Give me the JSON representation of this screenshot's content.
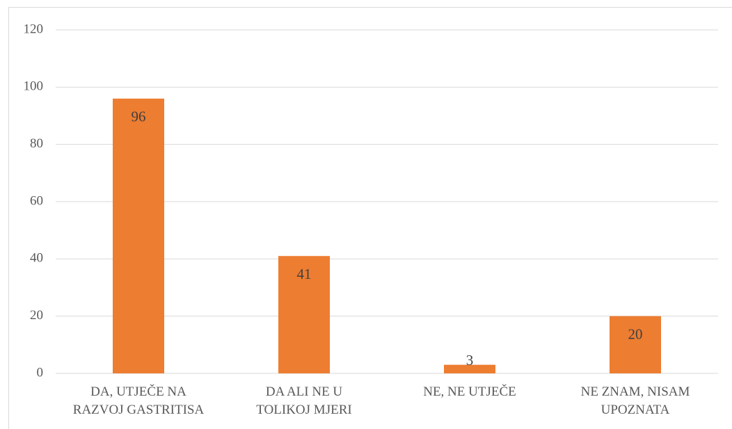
{
  "chart_data": {
    "type": "bar",
    "categories": [
      "DA, UTJEČE NA\nRAZVOJ GASTRITISA",
      "DA ALI NE U\nTOLIKOJ MJERI",
      "NE, NE UTJEČE",
      "NE ZNAM, NISAM\nUPOZNATA"
    ],
    "values": [
      96,
      41,
      3,
      20
    ],
    "color": "#ed7d31",
    "ylim": [
      0,
      120
    ],
    "yticks": [
      0,
      20,
      40,
      60,
      80,
      100,
      120
    ],
    "grid": true
  }
}
